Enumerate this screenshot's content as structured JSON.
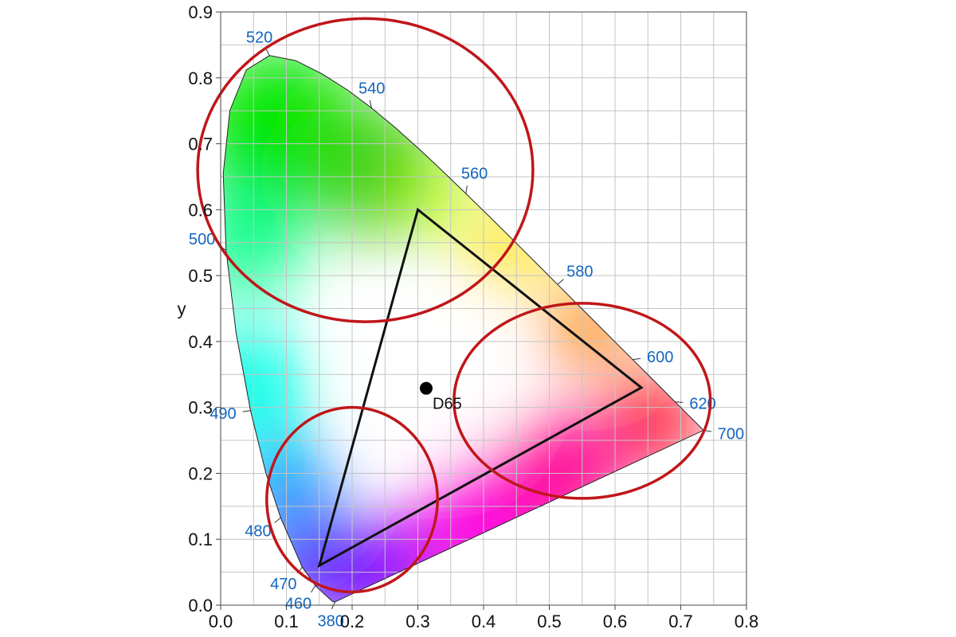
{
  "chart_data": {
    "type": "scatter",
    "xlabel": "",
    "ylabel": "y",
    "xlim": [
      0.0,
      0.8
    ],
    "ylim": [
      0.0,
      0.9
    ],
    "grid": true,
    "grid_step": 0.05,
    "x_ticks": [
      "0.0",
      "0.1",
      "0.2",
      "0.3",
      "0.4",
      "0.5",
      "0.6",
      "0.7",
      "0.8"
    ],
    "y_ticks": [
      "0.0",
      "0.1",
      "0.2",
      "0.3",
      "0.4",
      "0.5",
      "0.6",
      "0.7",
      "0.8",
      "0.9"
    ],
    "spectral_locus": [
      [
        0.1741,
        0.005
      ],
      [
        0.1736,
        0.0049
      ],
      [
        0.1714,
        0.0051
      ],
      [
        0.1689,
        0.0069
      ],
      [
        0.1644,
        0.0109
      ],
      [
        0.1566,
        0.0177
      ],
      [
        0.144,
        0.0297
      ],
      [
        0.1241,
        0.0578
      ],
      [
        0.0913,
        0.1327
      ],
      [
        0.0687,
        0.2007
      ],
      [
        0.0454,
        0.295
      ],
      [
        0.0235,
        0.4127
      ],
      [
        0.0082,
        0.5384
      ],
      [
        0.0039,
        0.6548
      ],
      [
        0.0139,
        0.7502
      ],
      [
        0.0389,
        0.812
      ],
      [
        0.0743,
        0.8338
      ],
      [
        0.1142,
        0.8262
      ],
      [
        0.1547,
        0.8059
      ],
      [
        0.1929,
        0.7816
      ],
      [
        0.2296,
        0.7543
      ],
      [
        0.2658,
        0.7243
      ],
      [
        0.3016,
        0.6923
      ],
      [
        0.3373,
        0.6589
      ],
      [
        0.3731,
        0.6245
      ],
      [
        0.4087,
        0.5896
      ],
      [
        0.4441,
        0.5547
      ],
      [
        0.4788,
        0.5202
      ],
      [
        0.5125,
        0.4866
      ],
      [
        0.5448,
        0.4544
      ],
      [
        0.5752,
        0.4242
      ],
      [
        0.6029,
        0.3965
      ],
      [
        0.627,
        0.3725
      ],
      [
        0.6482,
        0.3514
      ],
      [
        0.6658,
        0.334
      ],
      [
        0.6801,
        0.3197
      ],
      [
        0.6915,
        0.3083
      ],
      [
        0.7006,
        0.2993
      ],
      [
        0.7079,
        0.292
      ],
      [
        0.714,
        0.2859
      ],
      [
        0.719,
        0.2809
      ],
      [
        0.723,
        0.277
      ],
      [
        0.726,
        0.274
      ],
      [
        0.7283,
        0.2717
      ],
      [
        0.73,
        0.27
      ],
      [
        0.732,
        0.268
      ],
      [
        0.7347,
        0.2653
      ]
    ],
    "wavelength_labels": [
      {
        "label": "380",
        "x": 0.1741,
        "y": 0.005,
        "side": "right"
      },
      {
        "label": "460",
        "x": 0.144,
        "y": 0.0297,
        "side": "left"
      },
      {
        "label": "470",
        "x": 0.1241,
        "y": 0.0578,
        "side": "left"
      },
      {
        "label": "480",
        "x": 0.0913,
        "y": 0.1327,
        "side": "left"
      },
      {
        "label": "490",
        "x": 0.0454,
        "y": 0.295,
        "side": "left"
      },
      {
        "label": "500",
        "x": 0.0082,
        "y": 0.5384,
        "side": "left"
      },
      {
        "label": "520",
        "x": 0.0743,
        "y": 0.8338,
        "side": "top"
      },
      {
        "label": "540",
        "x": 0.2296,
        "y": 0.7543,
        "side": "right"
      },
      {
        "label": "560",
        "x": 0.3731,
        "y": 0.6245,
        "side": "right"
      },
      {
        "label": "580",
        "x": 0.5125,
        "y": 0.4866,
        "side": "right"
      },
      {
        "label": "600",
        "x": 0.627,
        "y": 0.3725,
        "side": "right"
      },
      {
        "label": "620",
        "x": 0.6915,
        "y": 0.3083,
        "side": "right"
      },
      {
        "label": "700",
        "x": 0.7347,
        "y": 0.2653,
        "side": "right"
      }
    ],
    "gamut_triangle": [
      [
        0.64,
        0.33
      ],
      [
        0.3,
        0.6
      ],
      [
        0.15,
        0.06
      ]
    ],
    "white_point": {
      "label": "D65",
      "x": 0.3127,
      "y": 0.329
    },
    "highlight_circles": [
      {
        "cx": 0.22,
        "cy": 0.66,
        "rx": 0.255,
        "ry": 0.23
      },
      {
        "cx": 0.55,
        "cy": 0.31,
        "rx": 0.195,
        "ry": 0.148
      },
      {
        "cx": 0.2,
        "cy": 0.16,
        "rx": 0.13,
        "ry": 0.14
      }
    ],
    "colors": {
      "wavelength_label": "#1565c0",
      "circle": "#c0161a",
      "triangle": "#111111",
      "grid": "#c4c4c4",
      "axis": "#444444"
    }
  }
}
